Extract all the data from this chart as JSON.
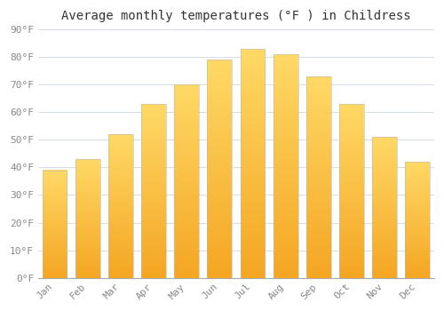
{
  "months": [
    "Jan",
    "Feb",
    "Mar",
    "Apr",
    "May",
    "Jun",
    "Jul",
    "Aug",
    "Sep",
    "Oct",
    "Nov",
    "Dec"
  ],
  "temperatures": [
    39,
    43,
    52,
    63,
    70,
    79,
    83,
    81,
    73,
    63,
    51,
    42
  ],
  "bar_color_bottom": "#F5A623",
  "bar_color_top": "#FFD966",
  "title": "Average monthly temperatures (°F ) in Childress",
  "ylim": [
    0,
    90
  ],
  "yticks": [
    0,
    10,
    20,
    30,
    40,
    50,
    60,
    70,
    80,
    90
  ],
  "ytick_labels": [
    "0°F",
    "10°F",
    "20°F",
    "30°F",
    "40°F",
    "50°F",
    "60°F",
    "70°F",
    "80°F",
    "90°F"
  ],
  "background_color": "#ffffff",
  "grid_color": "#d8dce6",
  "title_fontsize": 10,
  "tick_fontsize": 8,
  "bar_width": 0.75,
  "tick_color": "#888888",
  "title_color": "#333333"
}
